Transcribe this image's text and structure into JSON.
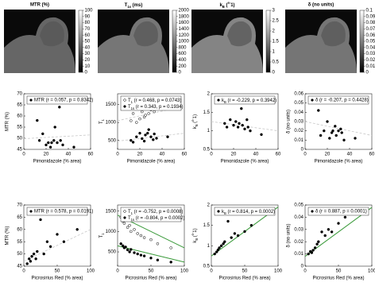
{
  "chart_data": [
    {
      "type": "image",
      "title": "MTR (%)",
      "ylim": [
        0,
        100
      ],
      "yticks": [
        0,
        10,
        20,
        30,
        40,
        50,
        60,
        70,
        80,
        90,
        100
      ]
    },
    {
      "type": "image",
      "title": "T1s (ms)",
      "title_sub": [
        1,
        3
      ],
      "ylim": [
        0,
        2000
      ],
      "yticks": [
        0,
        200,
        400,
        600,
        800,
        1000,
        1200,
        1400,
        1600,
        1800,
        2000
      ]
    },
    {
      "type": "image",
      "title": "kB (s-1)",
      "title_sub": [
        1,
        2
      ],
      "title_sup": [
        4,
        6
      ],
      "ylim": [
        0,
        3
      ],
      "yticks": [
        0,
        0.5,
        1,
        1.5,
        2,
        2.5,
        3
      ]
    },
    {
      "type": "image",
      "title": "δ (no units)",
      "ylim": [
        0,
        0.1
      ],
      "yticks": [
        0,
        0.01,
        0.02,
        0.03,
        0.04,
        0.05,
        0.06,
        0.07,
        0.08,
        0.09,
        0.1
      ]
    },
    {
      "type": "scatter",
      "xlabel": "Pimonidazole (% area)",
      "ylabel": "MTR (%)",
      "xlim": [
        0,
        60
      ],
      "xticks": [
        0,
        20,
        40,
        60
      ],
      "ylim": [
        45,
        70
      ],
      "yticks": [
        45,
        50,
        55,
        60,
        65,
        70
      ],
      "series": [
        {
          "name": "MTR (r = 0.057, p = 0.8342)",
          "marker": "filled",
          "color": "#000000",
          "x": [
            12,
            14,
            17,
            20,
            22,
            24,
            25,
            27,
            28,
            30,
            32,
            33,
            35,
            45
          ],
          "values": [
            58,
            49,
            52,
            47,
            48,
            46,
            48,
            49,
            55,
            48,
            64,
            49,
            47,
            46
          ]
        }
      ],
      "fit_lines": [
        {
          "x": [
            0,
            60
          ],
          "values": [
            49.8,
            51.5
          ],
          "style": "dashed",
          "color": "#c8c8c8"
        }
      ]
    },
    {
      "type": "scatter",
      "xlabel": "Pimonidazole (% area)",
      "ylabel": "T1",
      "ylabel_sub": [
        1,
        2
      ],
      "xlim": [
        0,
        60
      ],
      "xticks": [
        0,
        20,
        40,
        60
      ],
      "ylim": [
        250,
        1800
      ],
      "yticks": [
        500,
        1000,
        1500
      ],
      "series": [
        {
          "name": "T1 (r = 0.468, p = 0.0743)",
          "name_sub": [
            1,
            2
          ],
          "marker": "open",
          "color": "#000000",
          "x": [
            12,
            14,
            17,
            20,
            22,
            24,
            25,
            27,
            28,
            30,
            32,
            33,
            35,
            45
          ],
          "values": [
            1050,
            1250,
            1000,
            1100,
            1300,
            1150,
            1200,
            1400,
            1250,
            1350,
            1500,
            1300,
            1450,
            1600
          ]
        },
        {
          "name": "T1s (r = 0.343, p = 0.1934)",
          "name_sub": [
            1,
            3
          ],
          "marker": "filled",
          "color": "#000000",
          "x": [
            12,
            14,
            17,
            20,
            22,
            24,
            25,
            27,
            28,
            30,
            32,
            33,
            35,
            45
          ],
          "values": [
            500,
            450,
            600,
            700,
            550,
            480,
            650,
            700,
            800,
            600,
            520,
            680,
            560,
            600
          ]
        }
      ],
      "fit_lines": [
        {
          "x": [
            0,
            60
          ],
          "values": [
            1050,
            1450
          ],
          "style": "dashed",
          "color": "#c8c8c8"
        },
        {
          "x": [
            0,
            60
          ],
          "values": [
            480,
            700
          ],
          "style": "dashed",
          "color": "#c8c8c8"
        }
      ]
    },
    {
      "type": "scatter",
      "xlabel": "Pimonidazole (% area)",
      "ylabel": "kB (s-1)",
      "ylabel_sub": [
        1,
        2
      ],
      "ylabel_sup": [
        4,
        6
      ],
      "xlim": [
        0,
        60
      ],
      "xticks": [
        0,
        20,
        40,
        60
      ],
      "ylim": [
        0.5,
        2
      ],
      "yticks": [
        0.5,
        1,
        1.5,
        2
      ],
      "series": [
        {
          "name": "kB (r = -0.229, p = 0.3942)",
          "name_sub": [
            1,
            2
          ],
          "marker": "filled",
          "color": "#000000",
          "x": [
            12,
            14,
            17,
            20,
            22,
            24,
            25,
            27,
            28,
            30,
            32,
            33,
            35,
            45
          ],
          "values": [
            1.2,
            1.1,
            1.3,
            1.15,
            1.25,
            1.1,
            1.2,
            1.6,
            1.15,
            1.05,
            1.3,
            1.1,
            1.0,
            0.9
          ]
        }
      ],
      "fit_lines": [
        {
          "x": [
            0,
            60
          ],
          "values": [
            1.25,
            1.0
          ],
          "style": "dashed",
          "color": "#c8c8c8"
        }
      ]
    },
    {
      "type": "scatter",
      "xlabel": "Pimonidazole (% area)",
      "ylabel": "δ (no units)",
      "xlim": [
        0,
        60
      ],
      "xticks": [
        0,
        20,
        40,
        60
      ],
      "ylim": [
        0,
        0.06
      ],
      "yticks": [
        0,
        0.01,
        0.02,
        0.03,
        0.04,
        0.05,
        0.06
      ],
      "series": [
        {
          "name": "δ (r = -0.207, p = 0.4428)",
          "marker": "filled",
          "color": "#000000",
          "x": [
            12,
            14,
            17,
            20,
            22,
            24,
            25,
            27,
            28,
            30,
            32,
            33,
            35,
            45
          ],
          "values": [
            0.042,
            0.015,
            0.02,
            0.03,
            0.012,
            0.018,
            0.02,
            0.025,
            0.015,
            0.02,
            0.022,
            0.018,
            0.01,
            0.012
          ]
        }
      ],
      "fit_lines": [
        {
          "x": [
            0,
            60
          ],
          "values": [
            0.03,
            0.015
          ],
          "style": "dashed",
          "color": "#c8c8c8"
        }
      ]
    },
    {
      "type": "scatter",
      "xlabel": "Picrosirius Red (% area)",
      "ylabel": "MTR (%)",
      "xlim": [
        0,
        100
      ],
      "xticks": [
        0,
        50,
        100
      ],
      "ylim": [
        45,
        70
      ],
      "yticks": [
        45,
        50,
        55,
        60,
        65,
        70
      ],
      "series": [
        {
          "name": "MTR (r = 0.578, p = 0.0191)",
          "marker": "filled",
          "color": "#000000",
          "x": [
            5,
            8,
            10,
            12,
            15,
            18,
            20,
            25,
            30,
            35,
            40,
            50,
            60,
            80
          ],
          "values": [
            46,
            48,
            47,
            49,
            50,
            48,
            51,
            64,
            50,
            55,
            53,
            58,
            55,
            60
          ]
        }
      ],
      "fit_lines": [
        {
          "x": [
            0,
            100
          ],
          "values": [
            47,
            60
          ],
          "style": "dashed",
          "color": "#c8c8c8"
        }
      ]
    },
    {
      "type": "scatter",
      "xlabel": "Picrosirius Red (% area)",
      "ylabel": "T1",
      "ylabel_sub": [
        1,
        2
      ],
      "xlim": [
        0,
        100
      ],
      "xticks": [
        0,
        50,
        100
      ],
      "ylim": [
        150,
        1650
      ],
      "yticks": [
        500,
        1000,
        1500
      ],
      "series": [
        {
          "name": "T1 (r = -0.752, p = 0.0008)",
          "name_sub": [
            1,
            2
          ],
          "marker": "open",
          "color": "#000000",
          "x": [
            5,
            8,
            10,
            12,
            15,
            18,
            20,
            25,
            30,
            35,
            40,
            50,
            60,
            80
          ],
          "values": [
            1350,
            1250,
            1200,
            1300,
            1100,
            1150,
            1000,
            1050,
            950,
            900,
            850,
            800,
            700,
            600
          ]
        },
        {
          "name": "T1s (r = -0.804, p = 0.0002)",
          "name_sub": [
            1,
            3
          ],
          "marker": "filled",
          "color": "#000000",
          "x": [
            5,
            8,
            10,
            12,
            15,
            18,
            20,
            25,
            30,
            35,
            40,
            50,
            60,
            80
          ],
          "values": [
            700,
            650,
            600,
            620,
            550,
            500,
            560,
            480,
            450,
            420,
            400,
            350,
            300,
            250
          ]
        }
      ],
      "fit_lines": [
        {
          "x": [
            0,
            100
          ],
          "values": [
            1400,
            600
          ],
          "style": "solid",
          "color": "#3a9a3a"
        },
        {
          "x": [
            0,
            100
          ],
          "values": [
            650,
            250
          ],
          "style": "solid",
          "color": "#3a9a3a"
        }
      ]
    },
    {
      "type": "scatter",
      "xlabel": "Picrosirius Red (% area)",
      "ylabel": "kB (s-1)",
      "ylabel_sub": [
        1,
        2
      ],
      "ylabel_sup": [
        4,
        6
      ],
      "xlim": [
        0,
        100
      ],
      "xticks": [
        0,
        50,
        100
      ],
      "ylim": [
        0.5,
        2
      ],
      "yticks": [
        0.5,
        1,
        1.5,
        2
      ],
      "series": [
        {
          "name": "kB (r = 0.814, p = 0.0002)",
          "name_sub": [
            1,
            2
          ],
          "marker": "filled",
          "color": "#000000",
          "x": [
            5,
            8,
            10,
            12,
            15,
            18,
            20,
            25,
            30,
            35,
            40,
            50,
            60,
            80
          ],
          "values": [
            0.8,
            0.85,
            0.9,
            0.95,
            1.0,
            1.05,
            1.1,
            1.6,
            1.2,
            1.3,
            1.25,
            1.35,
            1.5,
            1.8
          ]
        }
      ],
      "fit_lines": [
        {
          "x": [
            0,
            100
          ],
          "values": [
            0.75,
            1.95
          ],
          "style": "solid",
          "color": "#3a9a3a"
        }
      ]
    },
    {
      "type": "scatter",
      "xlabel": "Picrosirius Red (% area)",
      "ylabel": "δ (no units)",
      "xlim": [
        0,
        100
      ],
      "xticks": [
        0,
        50,
        100
      ],
      "ylim": [
        0,
        0.05
      ],
      "yticks": [
        0,
        0.01,
        0.02,
        0.03,
        0.04,
        0.05
      ],
      "series": [
        {
          "name": "δ (r = 0.887, p = 0.0001)",
          "marker": "filled",
          "color": "#000000",
          "x": [
            5,
            8,
            10,
            12,
            15,
            18,
            20,
            25,
            30,
            35,
            40,
            50,
            60,
            80
          ],
          "values": [
            0.01,
            0.012,
            0.011,
            0.013,
            0.015,
            0.018,
            0.02,
            0.028,
            0.025,
            0.03,
            0.028,
            0.035,
            0.04,
            0.045
          ]
        }
      ],
      "fit_lines": [
        {
          "x": [
            0,
            100
          ],
          "values": [
            0.008,
            0.048
          ],
          "style": "solid",
          "color": "#3a9a3a"
        }
      ]
    }
  ]
}
